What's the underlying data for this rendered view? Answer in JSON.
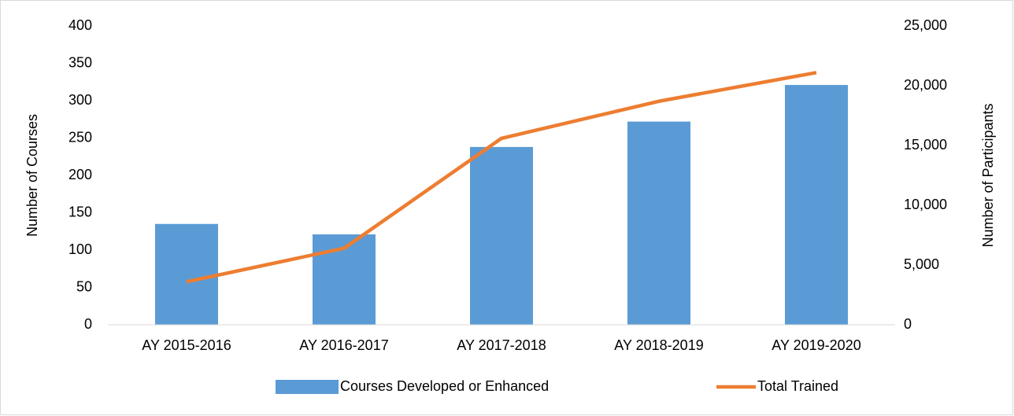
{
  "chart_data": {
    "type": "bar",
    "categories": [
      "AY 2015-2016",
      "AY 2016-2017",
      "AY 2017-2018",
      "AY 2018-2019",
      "AY 2019-2020"
    ],
    "series": [
      {
        "name": "Courses Developed or Enhanced",
        "color": "#5b9bd5",
        "values": [
          135,
          121,
          238,
          272,
          321
        ]
      },
      {
        "name": "Total Trained",
        "type": "line",
        "axis": "y2",
        "color": "#ed7d31",
        "values": [
          3600,
          6400,
          15600,
          18700,
          21100
        ]
      }
    ],
    "ylabel": "Number of Courses",
    "y2label": "Number of Participants",
    "ylim": [
      0,
      400
    ],
    "yticks": [
      0,
      50,
      100,
      150,
      200,
      250,
      300,
      350,
      400
    ],
    "y2lim": [
      0,
      25000
    ],
    "y2ticks": [
      0,
      {
        "value": 5000,
        "label": "5,000"
      },
      {
        "value": 10000,
        "label": "10,000"
      },
      {
        "value": 15000,
        "label": "15,000"
      },
      {
        "value": 20000,
        "label": "20,000"
      },
      {
        "value": 25000,
        "label": "25,000"
      }
    ],
    "grid": false,
    "legend": "bottom"
  }
}
